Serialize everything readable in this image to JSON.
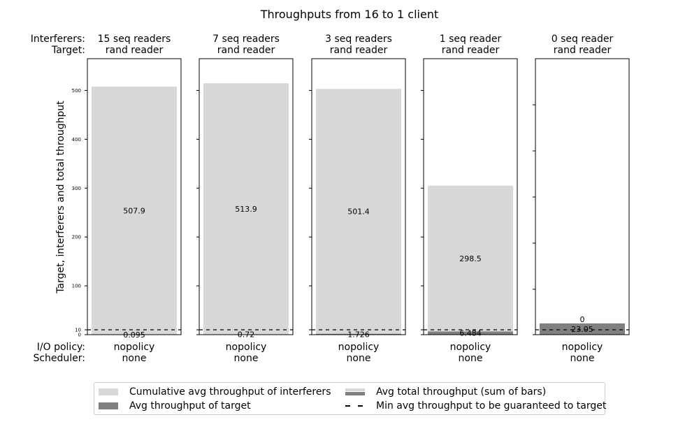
{
  "chart_data": {
    "type": "bar",
    "title": "Throughputs from 16 to 1 client",
    "ylabel": "Target, interferers and total throughput",
    "header_labels": {
      "interferers": "Interferers:",
      "target": "Target:"
    },
    "footer_labels": {
      "io_policy": "I/O policy:",
      "scheduler": "Scheduler:"
    },
    "yticks_main": [
      "0",
      "10",
      "100",
      "200",
      "300",
      "400",
      "500"
    ],
    "ylim": [
      0,
      565
    ],
    "guarantee_line": 10,
    "panels": [
      {
        "interferers": "15 seq readers",
        "target": "rand reader",
        "interferers_value": 507.9,
        "target_value": 0.095,
        "interferers_label": "507.9",
        "target_label": "0.095",
        "io_policy": "nopolicy",
        "scheduler": "none"
      },
      {
        "interferers": "7 seq readers",
        "target": "rand reader",
        "interferers_value": 513.9,
        "target_value": 0.72,
        "interferers_label": "513.9",
        "target_label": "0.72",
        "io_policy": "nopolicy",
        "scheduler": "none"
      },
      {
        "interferers": "3 seq readers",
        "target": "rand reader",
        "interferers_value": 501.4,
        "target_value": 1.726,
        "interferers_label": "501.4",
        "target_label": "1.726",
        "io_policy": "nopolicy",
        "scheduler": "none"
      },
      {
        "interferers": "1 seq reader",
        "target": "rand reader",
        "interferers_value": 298.5,
        "target_value": 6.484,
        "interferers_label": "298.5",
        "target_label": "6.484",
        "io_policy": "nopolicy",
        "scheduler": "none"
      },
      {
        "interferers": "0 seq reader",
        "target": "rand reader",
        "interferers_value": 0,
        "target_value": 23.05,
        "interferers_label": "0",
        "target_label": "23.05",
        "io_policy": "nopolicy",
        "scheduler": "none"
      }
    ],
    "legend_position": "bottom",
    "colors": {
      "interferers": "#d8d8d8",
      "target": "#808080",
      "guarantee": "#000000"
    }
  },
  "legend": {
    "interferers": "Cumulative avg throughput of interferers",
    "target": "Avg throughput of target",
    "total": "Avg total throughput (sum of bars)",
    "guarantee": "Min avg throughput to be guaranteed to target"
  }
}
